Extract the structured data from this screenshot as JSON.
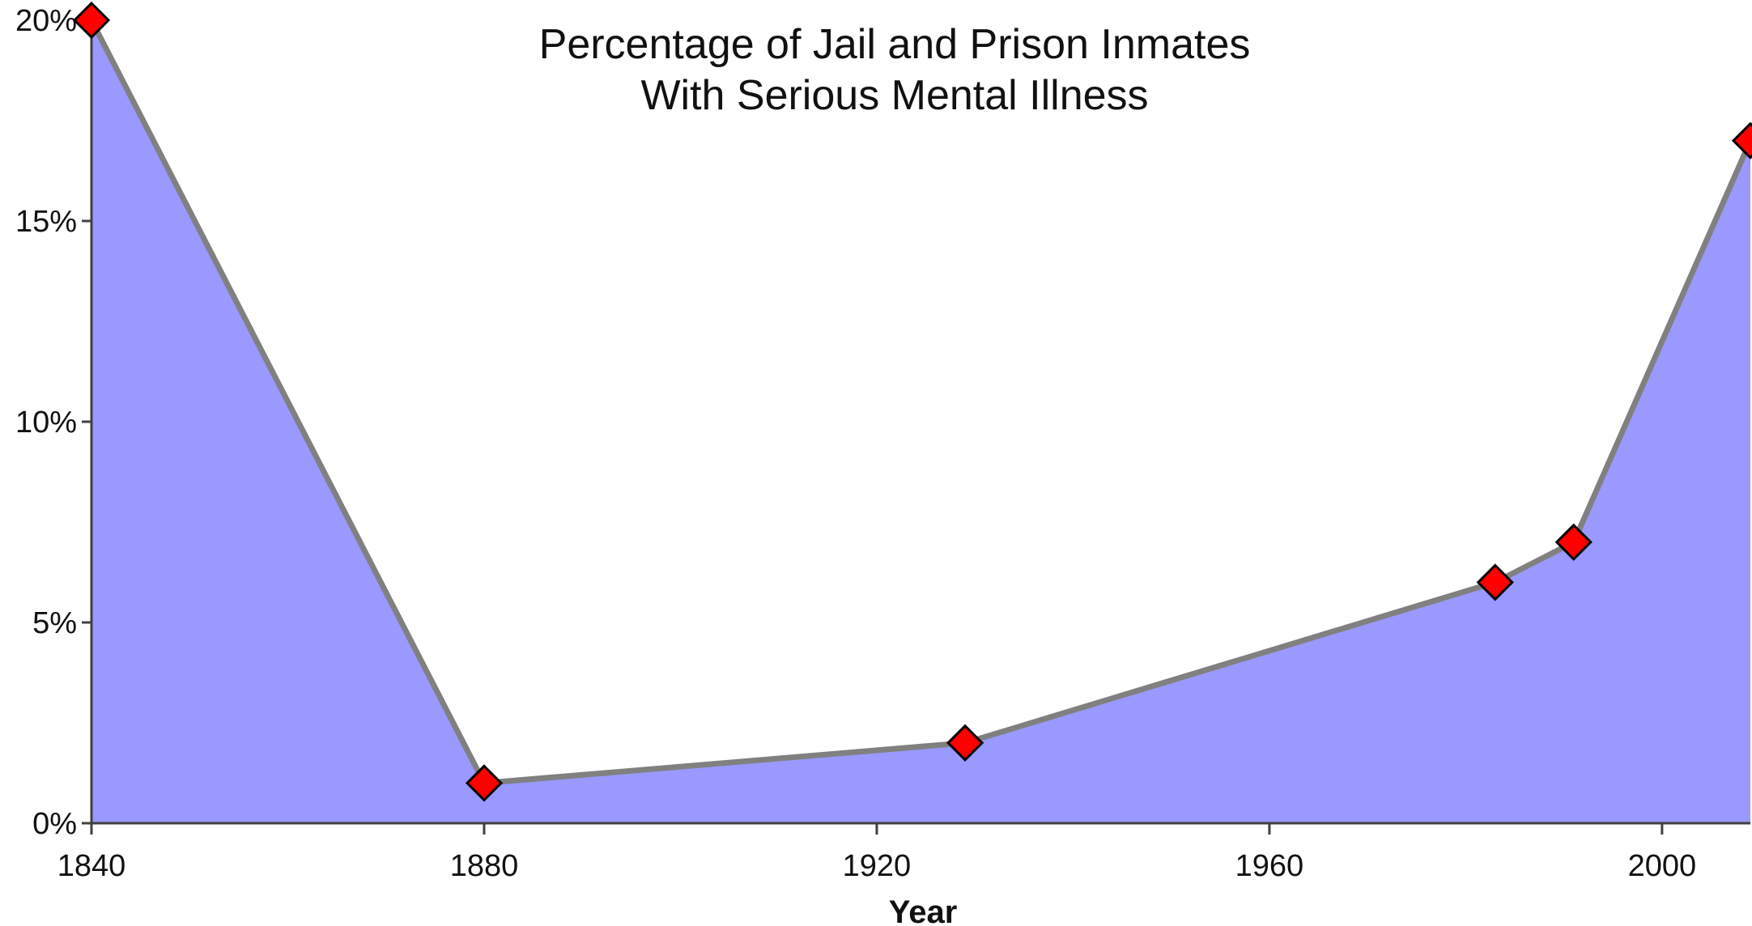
{
  "chart_data": {
    "type": "area",
    "title": [
      "Percentage of Jail and Prison Inmates",
      "With Serious Mental Illness"
    ],
    "xlabel": "Year",
    "ylabel": "",
    "x_ticks": [
      1840,
      1880,
      1920,
      1960,
      2000
    ],
    "x_tick_labels": [
      "1840",
      "1880",
      "1920",
      "1960",
      "2000"
    ],
    "y_ticks": [
      0,
      5,
      10,
      15,
      20
    ],
    "y_tick_labels": [
      "0%",
      "5%",
      "10%",
      "15%",
      "20%"
    ],
    "xlim": [
      1840,
      2009
    ],
    "ylim": [
      0,
      20
    ],
    "grid": false,
    "legend": "none",
    "series": [
      {
        "x": [
          1840,
          1880,
          1929,
          1983,
          1991,
          2009
        ],
        "y": [
          20,
          1,
          2,
          6,
          7,
          17
        ]
      }
    ],
    "colors": {
      "fill": "#9999ff",
      "line": "#808080",
      "marker": "#ff0000",
      "marker_outline": "#000000",
      "axis": "#404040",
      "text": "#111111"
    }
  }
}
